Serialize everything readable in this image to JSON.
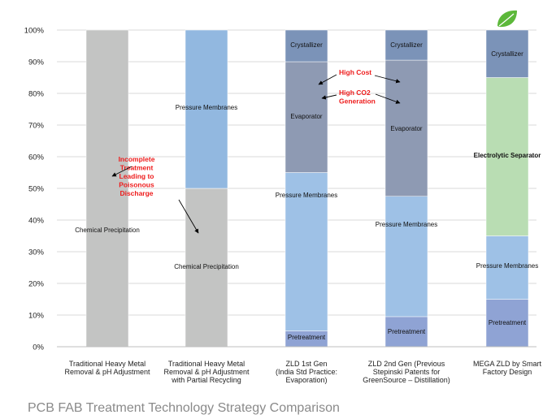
{
  "caption": "PCB FAB Treatment Technology Strategy Comparison",
  "chart_data": {
    "type": "bar",
    "stacked": true,
    "ylim": [
      0,
      100
    ],
    "yticks": [
      "0%",
      "10%",
      "20%",
      "30%",
      "40%",
      "50%",
      "60%",
      "70%",
      "80%",
      "90%",
      "100%"
    ],
    "categories": [
      [
        "Traditional Heavy Metal",
        "Removal & pH Adjustment"
      ],
      [
        "Traditional Heavy Metal",
        "Removal & pH Adjustment",
        "with Partial Recycling"
      ],
      [
        "ZLD 1st Gen",
        "(India Std Practice:",
        "Evaporation)"
      ],
      [
        "ZLD 2nd Gen (Previous",
        "Stepinski Patents for",
        "GreenSource – Distillation)"
      ],
      [
        "MEGA ZLD by Smart",
        "Factory Design"
      ]
    ],
    "stacks": [
      [
        {
          "label": "Chemical Precipitation",
          "value": 100,
          "color": "#c3c4c3"
        }
      ],
      [
        {
          "label": "Chemical Precipitation",
          "value": 50,
          "color": "#c3c4c3"
        },
        {
          "label": "Pressure Membranes",
          "value": 50,
          "color": "#92b8e0"
        }
      ],
      [
        {
          "label": "Pretreatment",
          "value": 5,
          "color": "#8fa3d4"
        },
        {
          "label": "Pressure Membranes",
          "value": 50,
          "color": "#9ec1e6"
        },
        {
          "label": "Evaporator",
          "value": 35,
          "color": "#8e9ab3"
        },
        {
          "label": "Crystallizer",
          "value": 10,
          "color": "#7b93b8"
        }
      ],
      [
        {
          "label": "Pretreatment",
          "value": 9.5,
          "color": "#8fa3d4"
        },
        {
          "label": "Pressure Membranes",
          "value": 38,
          "color": "#9ec1e6"
        },
        {
          "label": "Evaporator",
          "value": 43,
          "color": "#8e9ab3"
        },
        {
          "label": "Crystallizer",
          "value": 9.5,
          "color": "#7b93b8"
        }
      ],
      [
        {
          "label": "Pretreatment",
          "value": 15,
          "color": "#8fa3d4"
        },
        {
          "label": "Pressure Membranes",
          "value": 20,
          "color": "#9ec1e6"
        },
        {
          "label": "Electrolytic Separator",
          "value": 50,
          "color": "#b9ddb3",
          "bold": true
        },
        {
          "label": "Crystallizer",
          "value": 15,
          "color": "#7b93b8"
        }
      ]
    ],
    "annotations": [
      {
        "lines": [
          "Incomplete",
          "Treatment",
          "Leading to",
          "Poisonous",
          "Discharge"
        ],
        "color": "#ee1c1c",
        "bar": 0
      },
      {
        "lines": [
          "High Cost"
        ],
        "color": "#ee1c1c",
        "bar": 2
      },
      {
        "lines": [
          "High CO2",
          "Generation"
        ],
        "color": "#ee1c1c",
        "bar": 2
      }
    ],
    "badge_icon": "leaf-icon",
    "badge_color": "#5cb83a"
  }
}
